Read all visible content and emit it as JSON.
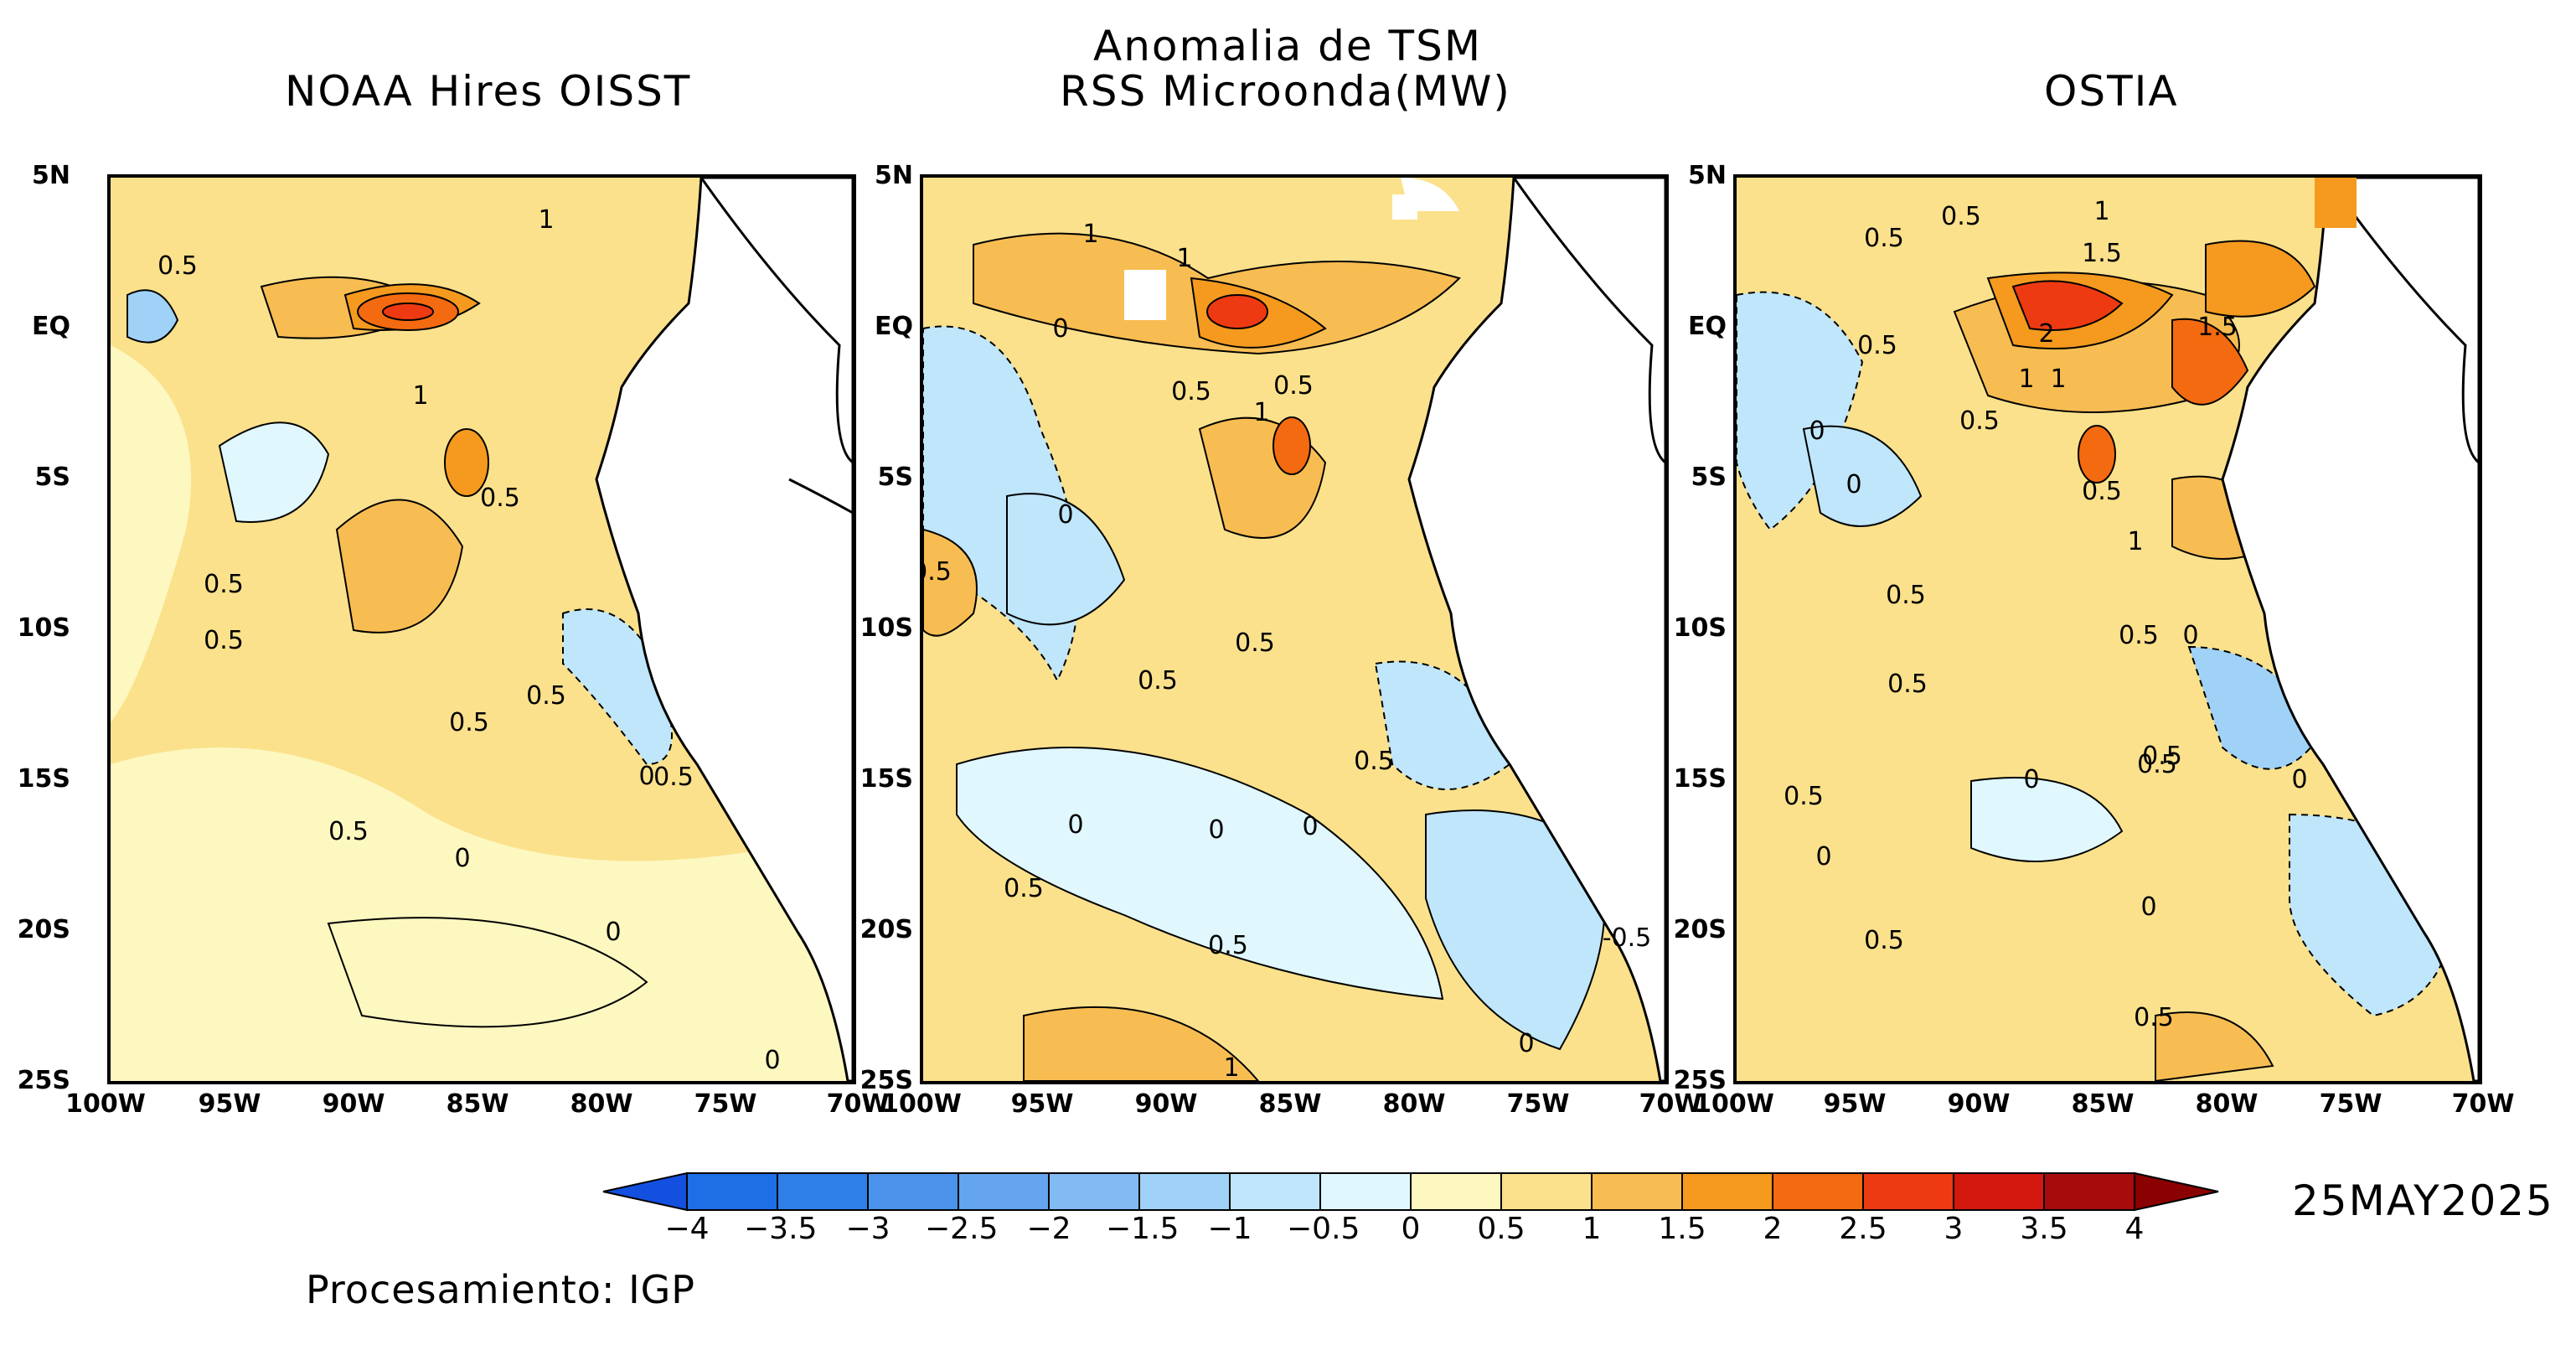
{
  "header": {
    "main_title_line1": "Anomalia de TSM",
    "main_title_line2": "RSS Microonda(MW)",
    "panel_titles": [
      "NOAA Hires OISST",
      "RSS Microonda(MW)",
      "OSTIA"
    ]
  },
  "axes": {
    "y_ticks": [
      "5N",
      "EQ",
      "5S",
      "10S",
      "15S",
      "20S",
      "25S"
    ],
    "x_ticks": [
      "100W",
      "95W",
      "90W",
      "85W",
      "80W",
      "75W",
      "70W"
    ]
  },
  "contour_labels": {
    "panel1": [
      "1",
      "0.5",
      "1",
      "0.5",
      "0.5",
      "0.5",
      "0.5",
      "0.5",
      "0.5",
      "0",
      "0.5",
      "0",
      "0",
      "0"
    ],
    "panel2": [
      "1",
      "1",
      "0",
      "0.5",
      "0.5",
      "1",
      "0",
      "0.5",
      "0.5",
      "0.5",
      "0.5",
      "0",
      "0",
      "0",
      "0.5",
      "0.5",
      "-0.5",
      "0",
      "1"
    ],
    "panel3": [
      "0.5",
      "0.5",
      "1",
      "1.5",
      "0.5",
      "2",
      "1.5",
      "1",
      "1",
      "0.5",
      "0",
      "0",
      "0.5",
      "1",
      "0.5",
      "0.5",
      "0.5",
      "0",
      "0.5",
      "0",
      "0",
      "0.5",
      "0",
      "0.5",
      "0.5",
      "0.5",
      "0"
    ]
  },
  "colorbar": {
    "labels": [
      "-4",
      "-3.5",
      "-3",
      "-2.5",
      "-2",
      "-1.5",
      "-1",
      "-0.5",
      "0",
      "0.5",
      "1",
      "1.5",
      "2",
      "2.5",
      "3",
      "3.5",
      "4"
    ],
    "colors": [
      "#1e6ee6",
      "#2f7fe8",
      "#4a92ea",
      "#64a5ee",
      "#82baf3",
      "#a0d2f7",
      "#bfe6fa",
      "#e0f7fd",
      "#fdf8c0",
      "#fbe18c",
      "#f8bd52",
      "#f59a1e",
      "#f36a10",
      "#ee3a12",
      "#d4180f",
      "#a80b0b"
    ],
    "under_color": "#1450e0",
    "over_color": "#8b0000"
  },
  "date": "25MAY2025",
  "footer": "Procesamiento: IGP",
  "palette": {
    "ocean_low": "#fdf8c0",
    "ocean_mid": "#fbe18c",
    "ocean_warm": "#f8bd52",
    "ocean_hot": "#f36a10",
    "ocean_cool": "#e0f7fd",
    "ocean_cold": "#a0d2f7",
    "land": "#ffffff"
  }
}
